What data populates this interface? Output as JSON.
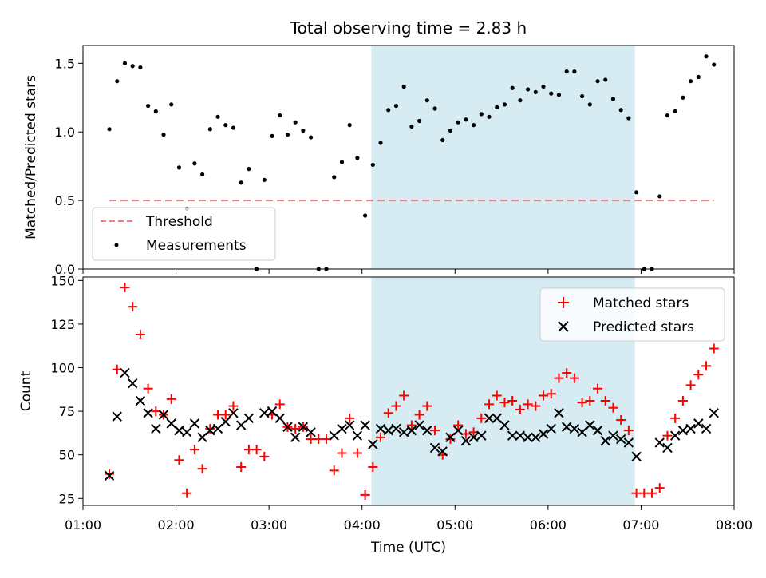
{
  "figure": {
    "title": "Total observing time = 2.83 h",
    "xlabel": "Time (UTC)"
  },
  "chart_data": [
    {
      "type": "scatter",
      "title": "Total observing time = 2.83 h",
      "ylabel": "Matched/Predicted stars",
      "xlabel": "Time (UTC)",
      "x_unit": "hours UTC",
      "xlim": [
        "01:00",
        "08:00"
      ],
      "ylim": [
        0,
        1.63
      ],
      "yticks": [
        0.0,
        0.5,
        1.0,
        1.5
      ],
      "xticks": [
        "01:00",
        "02:00",
        "03:00",
        "04:00",
        "05:00",
        "06:00",
        "07:00",
        "08:00"
      ],
      "shaded_span": {
        "x_start": "04:06",
        "x_end": "06:56",
        "color": "#add8e6"
      },
      "legend_position": "lower-left",
      "series": [
        {
          "name": "Threshold",
          "kind": "dashed-line",
          "color": "#f08080",
          "x": [
            "01:17",
            "07:47"
          ],
          "y": [
            0.5,
            0.5
          ]
        },
        {
          "name": "Measurements",
          "kind": "points",
          "color": "#000000",
          "x": [
            "01:17",
            "01:22",
            "01:27",
            "01:32",
            "01:37",
            "01:42",
            "01:47",
            "01:52",
            "01:57",
            "02:02",
            "02:07",
            "02:12",
            "02:17",
            "02:22",
            "02:27",
            "02:32",
            "02:37",
            "02:42",
            "02:47",
            "02:52",
            "02:57",
            "03:02",
            "03:07",
            "03:12",
            "03:17",
            "03:22",
            "03:27",
            "03:32",
            "03:37",
            "03:42",
            "03:47",
            "03:52",
            "03:57",
            "04:02",
            "04:07",
            "04:12",
            "04:17",
            "04:22",
            "04:27",
            "04:32",
            "04:37",
            "04:42",
            "04:47",
            "04:52",
            "04:57",
            "05:02",
            "05:07",
            "05:12",
            "05:17",
            "05:22",
            "05:27",
            "05:32",
            "05:37",
            "05:42",
            "05:47",
            "05:52",
            "05:57",
            "06:02",
            "06:07",
            "06:12",
            "06:17",
            "06:22",
            "06:27",
            "06:32",
            "06:37",
            "06:42",
            "06:47",
            "06:52",
            "06:57",
            "07:02",
            "07:07",
            "07:12",
            "07:17",
            "07:22",
            "07:27",
            "07:32",
            "07:37",
            "07:42",
            "07:47"
          ],
          "y": [
            1.02,
            1.37,
            1.5,
            1.48,
            1.47,
            1.19,
            1.15,
            0.98,
            1.2,
            0.74,
            0.44,
            0.77,
            0.69,
            1.02,
            1.11,
            1.05,
            1.03,
            0.63,
            0.73,
            0.0,
            0.65,
            0.97,
            1.12,
            0.98,
            1.07,
            1.01,
            0.96,
            0.0,
            0.0,
            0.67,
            0.78,
            1.05,
            0.81,
            0.39,
            0.76,
            0.92,
            1.16,
            1.19,
            1.33,
            1.04,
            1.08,
            1.23,
            1.17,
            0.94,
            1.01,
            1.07,
            1.09,
            1.05,
            1.13,
            1.11,
            1.18,
            1.2,
            1.32,
            1.23,
            1.31,
            1.29,
            1.33,
            1.28,
            1.27,
            1.44,
            1.44,
            1.26,
            1.2,
            1.37,
            1.38,
            1.24,
            1.16,
            1.1,
            0.56,
            0.0,
            0.0,
            0.53,
            1.12,
            1.15,
            1.25,
            1.37,
            1.4,
            1.55,
            1.49
          ]
        }
      ]
    },
    {
      "type": "scatter",
      "ylabel": "Count",
      "xlabel": "Time (UTC)",
      "x_unit": "hours UTC",
      "xlim": [
        "01:00",
        "08:00"
      ],
      "ylim": [
        21,
        152
      ],
      "yticks": [
        25,
        50,
        75,
        100,
        125,
        150
      ],
      "xticks": [
        "01:00",
        "02:00",
        "03:00",
        "04:00",
        "05:00",
        "06:00",
        "07:00",
        "08:00"
      ],
      "shaded_span": {
        "x_start": "04:06",
        "x_end": "06:56",
        "color": "#add8e6"
      },
      "legend_position": "upper-right",
      "x": [
        "01:17",
        "01:22",
        "01:27",
        "01:32",
        "01:37",
        "01:42",
        "01:47",
        "01:52",
        "01:57",
        "02:02",
        "02:07",
        "02:12",
        "02:17",
        "02:22",
        "02:27",
        "02:32",
        "02:37",
        "02:42",
        "02:47",
        "02:52",
        "02:57",
        "03:02",
        "03:07",
        "03:12",
        "03:17",
        "03:22",
        "03:27",
        "03:32",
        "03:37",
        "03:42",
        "03:47",
        "03:52",
        "03:57",
        "04:02",
        "04:07",
        "04:12",
        "04:17",
        "04:22",
        "04:27",
        "04:32",
        "04:37",
        "04:42",
        "04:47",
        "04:52",
        "04:57",
        "05:02",
        "05:07",
        "05:12",
        "05:17",
        "05:22",
        "05:27",
        "05:32",
        "05:37",
        "05:42",
        "05:47",
        "05:52",
        "05:57",
        "06:02",
        "06:07",
        "06:12",
        "06:17",
        "06:22",
        "06:27",
        "06:32",
        "06:37",
        "06:42",
        "06:47",
        "06:52",
        "06:57",
        "07:02",
        "07:07",
        "07:12",
        "07:17",
        "07:22",
        "07:27",
        "07:32",
        "07:37",
        "07:42",
        "07:47"
      ],
      "series": [
        {
          "name": "Matched stars",
          "marker": "plus",
          "color": "#ff0000",
          "values": [
            39,
            99,
            146,
            135,
            119,
            88,
            75,
            73,
            82,
            47,
            28,
            53,
            42,
            65,
            73,
            73,
            78,
            43,
            53,
            53,
            49,
            73,
            79,
            66,
            65,
            66,
            59,
            59,
            59,
            41,
            51,
            71,
            51,
            27,
            43,
            60,
            74,
            78,
            84,
            67,
            73,
            78,
            64,
            50,
            59,
            67,
            62,
            63,
            71,
            79,
            84,
            80,
            81,
            76,
            79,
            78,
            84,
            85,
            94,
            97,
            94,
            80,
            81,
            88,
            81,
            77,
            70,
            64,
            28,
            28,
            28,
            31,
            61,
            71,
            81,
            90,
            96,
            101,
            111
          ]
        },
        {
          "name": "Predicted stars",
          "marker": "x",
          "color": "#000000",
          "values": [
            38,
            72,
            97,
            91,
            81,
            74,
            65,
            73,
            68,
            64,
            63,
            68,
            60,
            64,
            65,
            69,
            74,
            67,
            71,
            null,
            74,
            75,
            71,
            66,
            60,
            66,
            63,
            null,
            null,
            61,
            65,
            67,
            61,
            67,
            56,
            65,
            64,
            65,
            63,
            64,
            67,
            64,
            54,
            52,
            60,
            64,
            58,
            60,
            61,
            71,
            71,
            67,
            61,
            61,
            60,
            60,
            62,
            65,
            74,
            66,
            65,
            63,
            67,
            64,
            58,
            61,
            59,
            57,
            49,
            null,
            null,
            57,
            54,
            61,
            64,
            65,
            68,
            65,
            74
          ]
        }
      ]
    }
  ]
}
